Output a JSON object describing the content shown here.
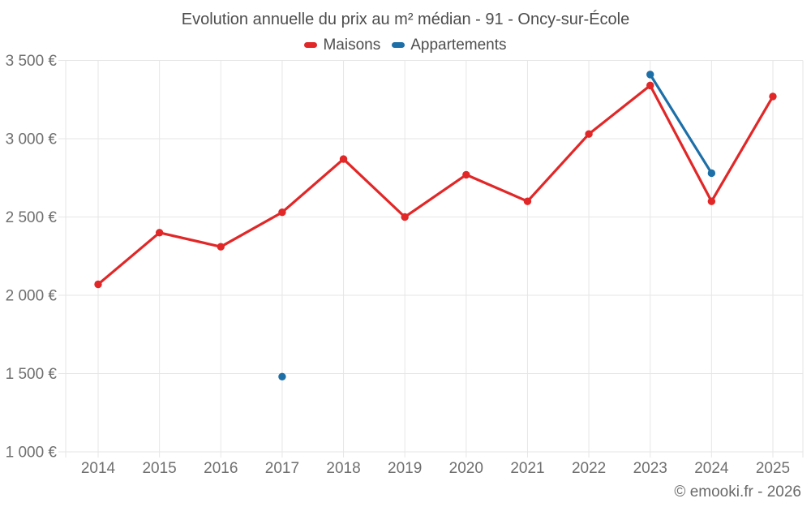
{
  "page": {
    "title": "Evolution annuelle du prix au m² médian - 91 - Oncy-sur-École",
    "footer": "© emooki.fr - 2026"
  },
  "legend": {
    "items": [
      {
        "label": "Maisons",
        "color": "#e12727"
      },
      {
        "label": "Appartements",
        "color": "#1d6fa8"
      }
    ]
  },
  "colors": {
    "background": "#ffffff",
    "grid": "#e6e6e6",
    "axis_text": "#6f6f6f",
    "title_text": "#4d4d4d",
    "legend_text": "#4d4d4d",
    "footer_text": "#6a6a6a",
    "maisons": "#e12727",
    "appartements": "#1d6fa8"
  },
  "chart_data": {
    "type": "line",
    "title": "Evolution annuelle du prix au m² médian - 91 - Oncy-sur-École",
    "categories": [
      "2014",
      "2015",
      "2016",
      "2017",
      "2018",
      "2019",
      "2020",
      "2021",
      "2022",
      "2023",
      "2024",
      "2025"
    ],
    "series": [
      {
        "name": "Maisons",
        "color": "#e12727",
        "values": [
          2070,
          2400,
          2310,
          2530,
          2870,
          2500,
          2770,
          2600,
          3030,
          3340,
          2600,
          3270
        ]
      },
      {
        "name": "Appartements",
        "color": "#1d6fa8",
        "values": [
          null,
          null,
          null,
          1480,
          null,
          null,
          null,
          null,
          null,
          3410,
          2780,
          null
        ]
      }
    ],
    "xlabel": "",
    "ylabel": "",
    "ylim": [
      1000,
      3500
    ],
    "ytick_step": 500,
    "ytick_labels": [
      "1 000 €",
      "1 500 €",
      "2 000 €",
      "2 500 €",
      "3 000 €",
      "3 500 €"
    ],
    "currency": "€",
    "grid": true,
    "legend_position": "top",
    "marker": "circle"
  }
}
